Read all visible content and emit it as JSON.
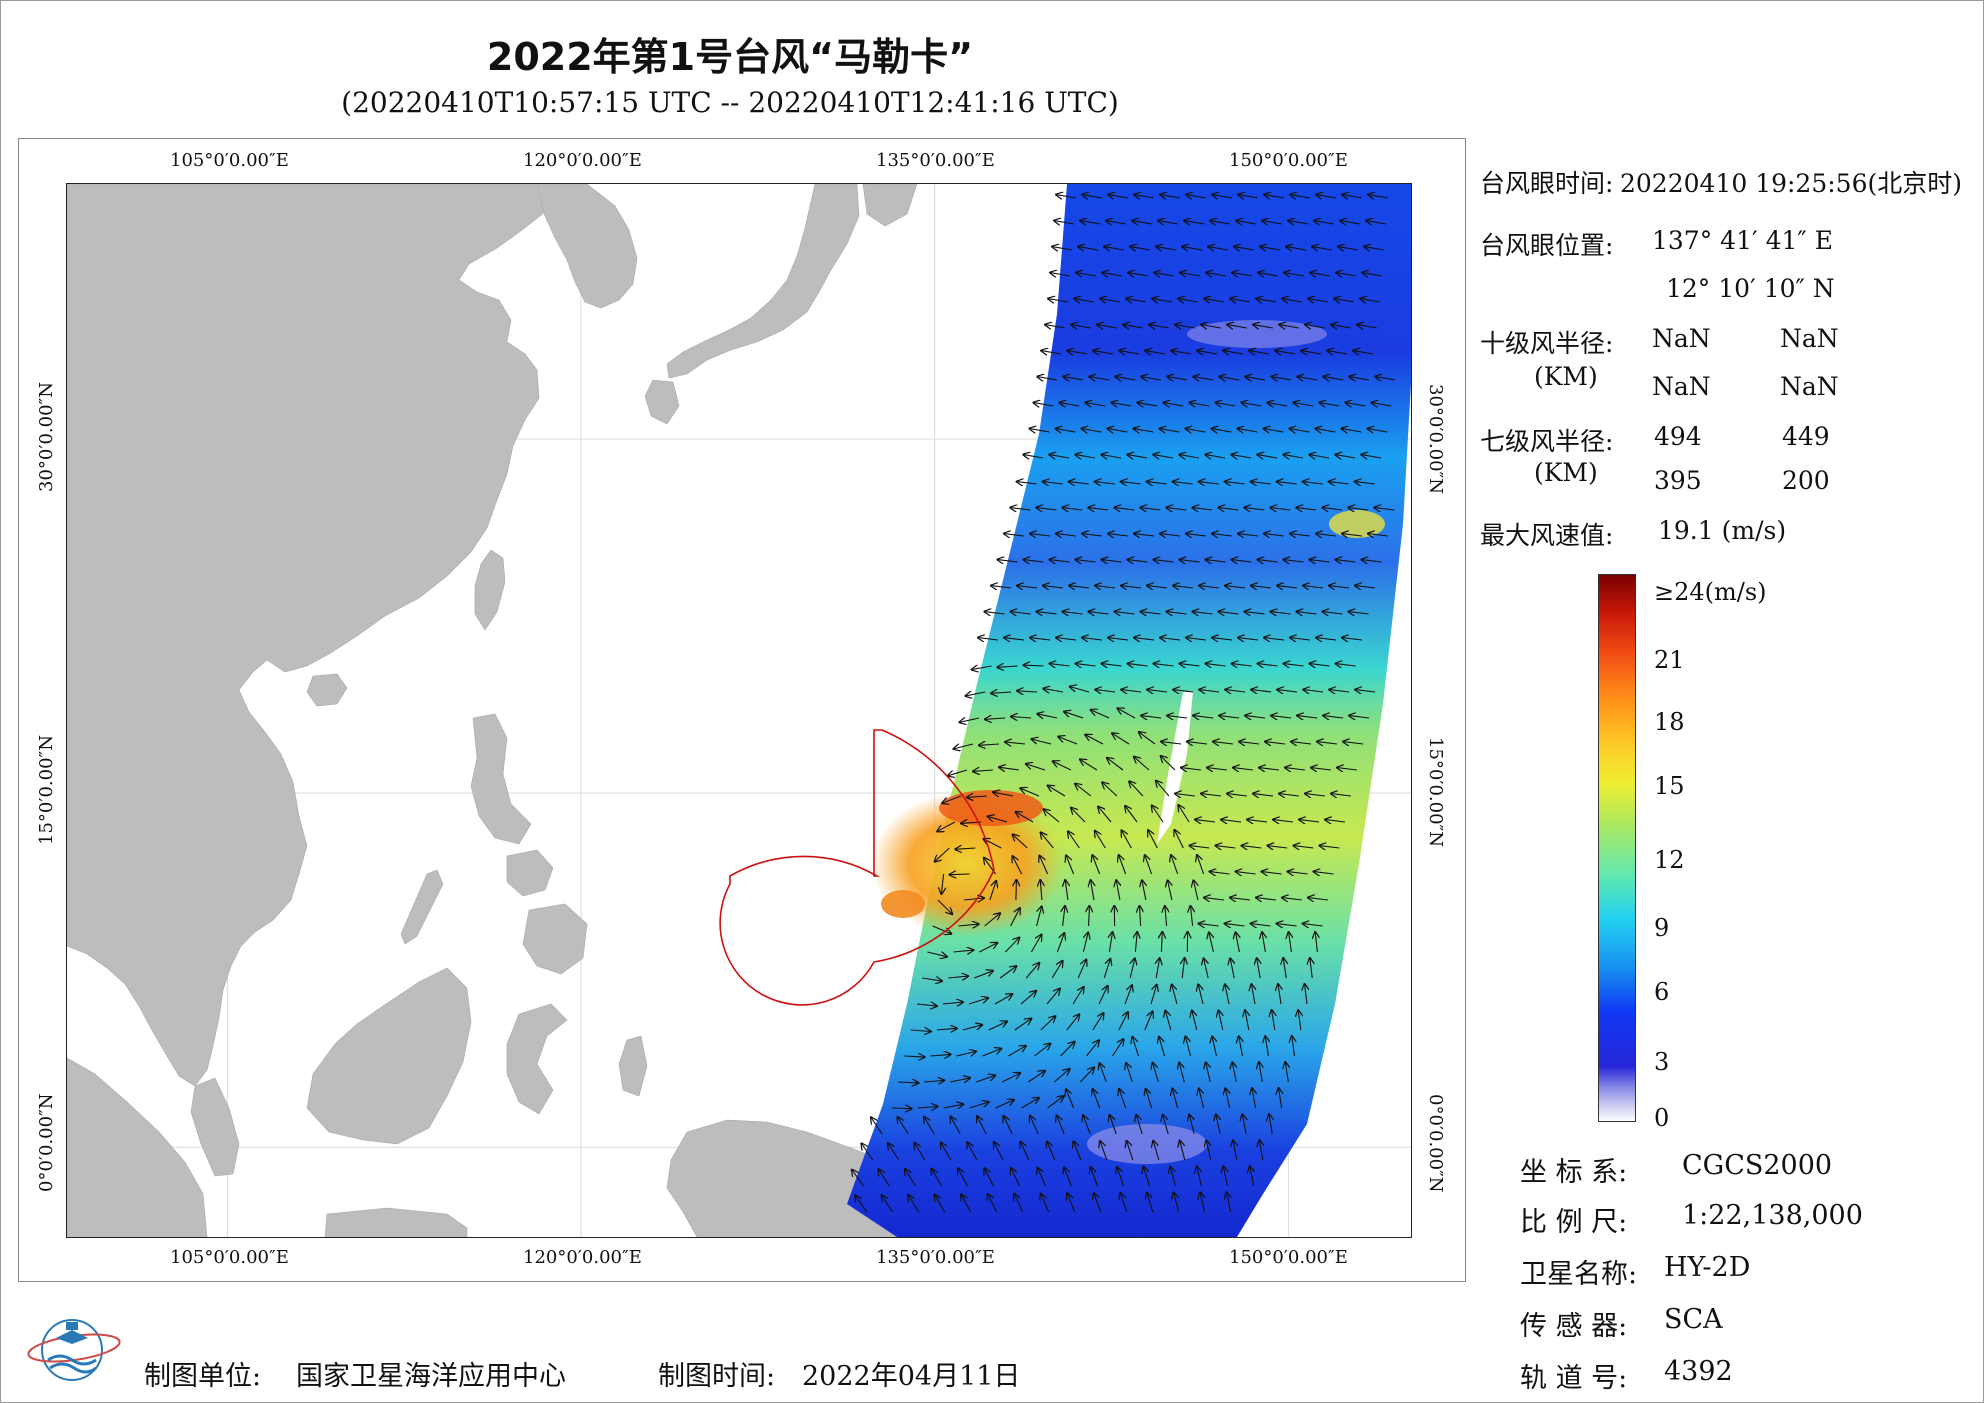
{
  "header": {
    "title": "2022年第1号台风“马勒卡”",
    "subtitle": "(20220410T10:57:15 UTC -- 20220410T12:41:16 UTC)"
  },
  "map": {
    "lon_labels": [
      "105°0′0.00″E",
      "120°0′0.00″E",
      "135°0′0.00″E",
      "150°0′0.00″E"
    ],
    "lat_labels": [
      "30°0′0.00″N",
      "15°0′0.00″N",
      "0°0′0.00″N"
    ],
    "extent": {
      "lon_min": 98.2,
      "lon_max": 155.2,
      "lat_min": -3.8,
      "lat_max": 40.8
    },
    "colors": {
      "land": "#bdbdbd",
      "ocean": "#ffffff",
      "grid": "#d9d9d9",
      "radius_line": "#cc1111",
      "arrow": "#111111"
    }
  },
  "info": {
    "eye_time_label": "台风眼时间:",
    "eye_time_value": "20220410 19:25:56(北京时)",
    "eye_pos_label": "台风眼位置:",
    "eye_lon": "137° 41′ 41″ E",
    "eye_lat": "12° 10′ 10″ N",
    "r10_label": "十级风半径:",
    "r10_unit": "(KM)",
    "r10_values": [
      "NaN",
      "NaN",
      "NaN",
      "NaN"
    ],
    "r7_label": "七级风半径:",
    "r7_unit": "(KM)",
    "r7_values": [
      "494",
      "449",
      "395",
      "200"
    ],
    "max_wind_label": "最大风速值:",
    "max_wind_value": "19.1 (m/s)"
  },
  "colorbar": {
    "top_label": "≥24(m/s)",
    "ticks": [
      "21",
      "18",
      "15",
      "12",
      "9",
      "6",
      "3",
      "0"
    ]
  },
  "metadata": {
    "crs_label": "坐 标 系:",
    "crs_value": "CGCS2000",
    "scale_label": "比 例 尺:",
    "scale_value": "1:22,138,000",
    "satellite_label": "卫星名称:",
    "satellite_value": "HY-2D",
    "sensor_label": "传 感 器:",
    "sensor_value": "SCA",
    "orbit_label": "轨 道 号:",
    "orbit_value": "4392"
  },
  "footer": {
    "maker_label": "制图单位:",
    "maker_value": "国家卫星海洋应用中心",
    "date_label": "制图时间:",
    "date_value": "2022年04月11日"
  },
  "logo": {
    "icon": "nsoas-globe-logo"
  }
}
